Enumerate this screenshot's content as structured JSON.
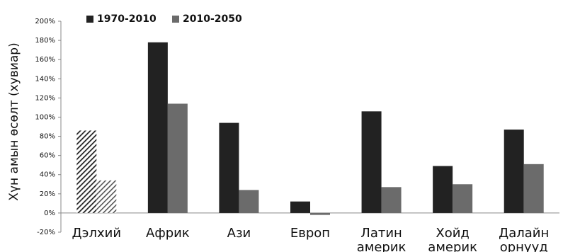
{
  "chart_data": {
    "type": "bar",
    "title": "",
    "ylabel": "Хүн амын өсөлт (хувиар)",
    "xlabel": "",
    "ylim": [
      -0.2,
      2.0
    ],
    "yticks": [
      "-20%",
      "0%",
      "20%",
      "40%",
      "60%",
      "80%",
      "100%",
      "120%",
      "140%",
      "160%",
      "180%",
      "200%"
    ],
    "categories": [
      [
        "Дэлхий"
      ],
      [
        "Африк"
      ],
      [
        "Ази"
      ],
      [
        "Европ"
      ],
      [
        "Латин",
        "америк"
      ],
      [
        "Хойд",
        "америк"
      ],
      [
        "Далайн",
        "орнууд"
      ]
    ],
    "series": [
      {
        "name": "1970-2010",
        "values": [
          0.86,
          1.78,
          0.94,
          0.12,
          1.06,
          0.49,
          0.87
        ],
        "color": "#222222"
      },
      {
        "name": "2010-2050",
        "values": [
          0.34,
          1.14,
          0.24,
          -0.02,
          0.27,
          0.3,
          0.51
        ],
        "color": "#6b6b6b"
      }
    ],
    "first_group_hatched": true,
    "grid": false,
    "legend_position": "top-left"
  }
}
